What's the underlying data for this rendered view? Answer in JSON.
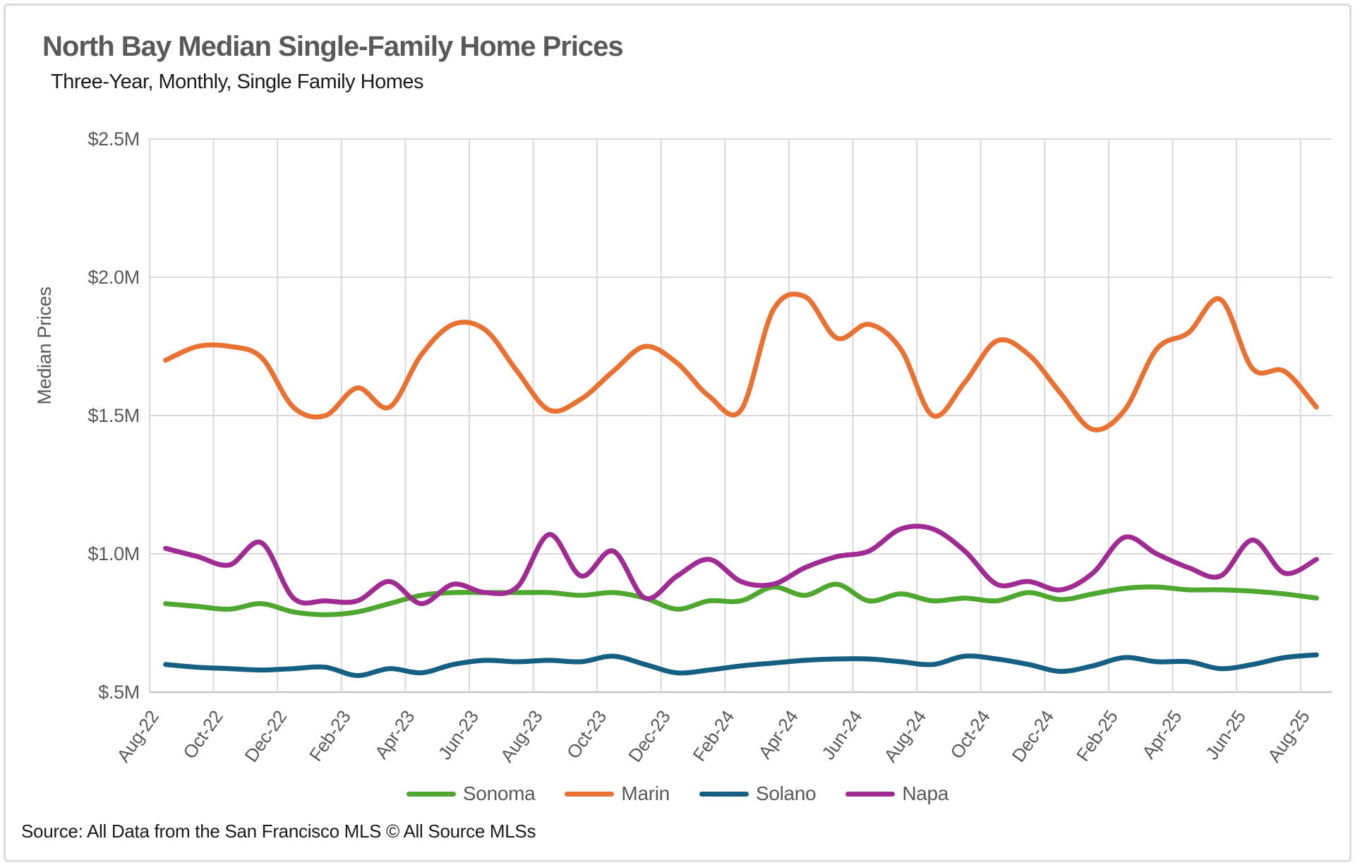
{
  "chart_data": {
    "type": "line",
    "title": "North Bay Median Single-Family Home Prices",
    "subtitle": "Three-Year, Monthly, Single Family Homes",
    "ylabel": "Median Prices",
    "source": "Source: All Data from the San Francisco MLS © All Source MLSs",
    "unit": "$M",
    "grid": true,
    "legend_position": "bottom",
    "ylim": [
      0.5,
      2.5
    ],
    "y_ticks": [
      {
        "label": "$2.5M",
        "value": 2.5
      },
      {
        "label": "$2.0M",
        "value": 2.0
      },
      {
        "label": "$1.5M",
        "value": 1.5
      },
      {
        "label": "$1.0M",
        "value": 1.0
      },
      {
        "label": "$.5M",
        "value": 0.5
      }
    ],
    "x_categories": [
      "Aug-22",
      "Sep-22",
      "Oct-22",
      "Nov-22",
      "Dec-22",
      "Jan-23",
      "Feb-23",
      "Mar-23",
      "Apr-23",
      "May-23",
      "Jun-23",
      "Jul-23",
      "Aug-23",
      "Sep-23",
      "Oct-23",
      "Nov-23",
      "Dec-23",
      "Jan-24",
      "Feb-24",
      "Mar-24",
      "Apr-24",
      "May-24",
      "Jun-24",
      "Jul-24",
      "Aug-24",
      "Sep-24",
      "Oct-24",
      "Nov-24",
      "Dec-24",
      "Jan-25",
      "Feb-25",
      "Mar-25",
      "Apr-25",
      "May-25",
      "Jun-25",
      "Jul-25",
      "Aug-25"
    ],
    "x_tick_labels": [
      "Aug-22",
      "Oct-22",
      "Dec-22",
      "Feb-23",
      "Apr-23",
      "Jun-23",
      "Aug-23",
      "Oct-23",
      "Dec-23",
      "Feb-24",
      "Apr-24",
      "Jun-24",
      "Aug-24",
      "Oct-24",
      "Dec-24",
      "Feb-25",
      "Apr-25",
      "Jun-25",
      "Aug-25"
    ],
    "series": [
      {
        "name": "Sonoma",
        "color": "#4EA72E",
        "values": [
          0.82,
          0.81,
          0.8,
          0.82,
          0.79,
          0.78,
          0.79,
          0.82,
          0.85,
          0.86,
          0.86,
          0.86,
          0.86,
          0.85,
          0.86,
          0.84,
          0.8,
          0.83,
          0.83,
          0.88,
          0.85,
          0.89,
          0.83,
          0.855,
          0.83,
          0.84,
          0.83,
          0.86,
          0.835,
          0.855,
          0.875,
          0.88,
          0.87,
          0.87,
          0.865,
          0.855,
          0.84
        ]
      },
      {
        "name": "Marin",
        "color": "#E97132",
        "values": [
          1.7,
          1.75,
          1.75,
          1.71,
          1.53,
          1.5,
          1.6,
          1.53,
          1.72,
          1.83,
          1.81,
          1.66,
          1.52,
          1.56,
          1.66,
          1.75,
          1.69,
          1.57,
          1.52,
          1.88,
          1.93,
          1.78,
          1.83,
          1.74,
          1.5,
          1.62,
          1.77,
          1.72,
          1.58,
          1.45,
          1.52,
          1.74,
          1.8,
          1.92,
          1.67,
          1.66,
          1.53
        ]
      },
      {
        "name": "Solano",
        "color": "#156082",
        "values": [
          0.6,
          0.59,
          0.585,
          0.58,
          0.585,
          0.59,
          0.56,
          0.585,
          0.57,
          0.6,
          0.615,
          0.61,
          0.615,
          0.61,
          0.63,
          0.6,
          0.57,
          0.58,
          0.595,
          0.605,
          0.615,
          0.62,
          0.62,
          0.61,
          0.6,
          0.63,
          0.62,
          0.6,
          0.575,
          0.595,
          0.625,
          0.61,
          0.61,
          0.585,
          0.6,
          0.625,
          0.635
        ]
      },
      {
        "name": "Napa",
        "color": "#A02B93",
        "values": [
          1.02,
          0.99,
          0.96,
          1.04,
          0.84,
          0.83,
          0.83,
          0.9,
          0.82,
          0.89,
          0.86,
          0.88,
          1.07,
          0.92,
          1.01,
          0.84,
          0.92,
          0.98,
          0.9,
          0.89,
          0.95,
          0.99,
          1.01,
          1.09,
          1.09,
          1.01,
          0.89,
          0.9,
          0.87,
          0.93,
          1.06,
          1.0,
          0.95,
          0.92,
          1.05,
          0.93,
          0.98
        ]
      }
    ],
    "colors": {
      "grid": "#D9D9D9",
      "axis": "#C6C6C6",
      "tick_text": "#595959",
      "title_text": "#595959",
      "border": "#DBDBDB"
    }
  }
}
